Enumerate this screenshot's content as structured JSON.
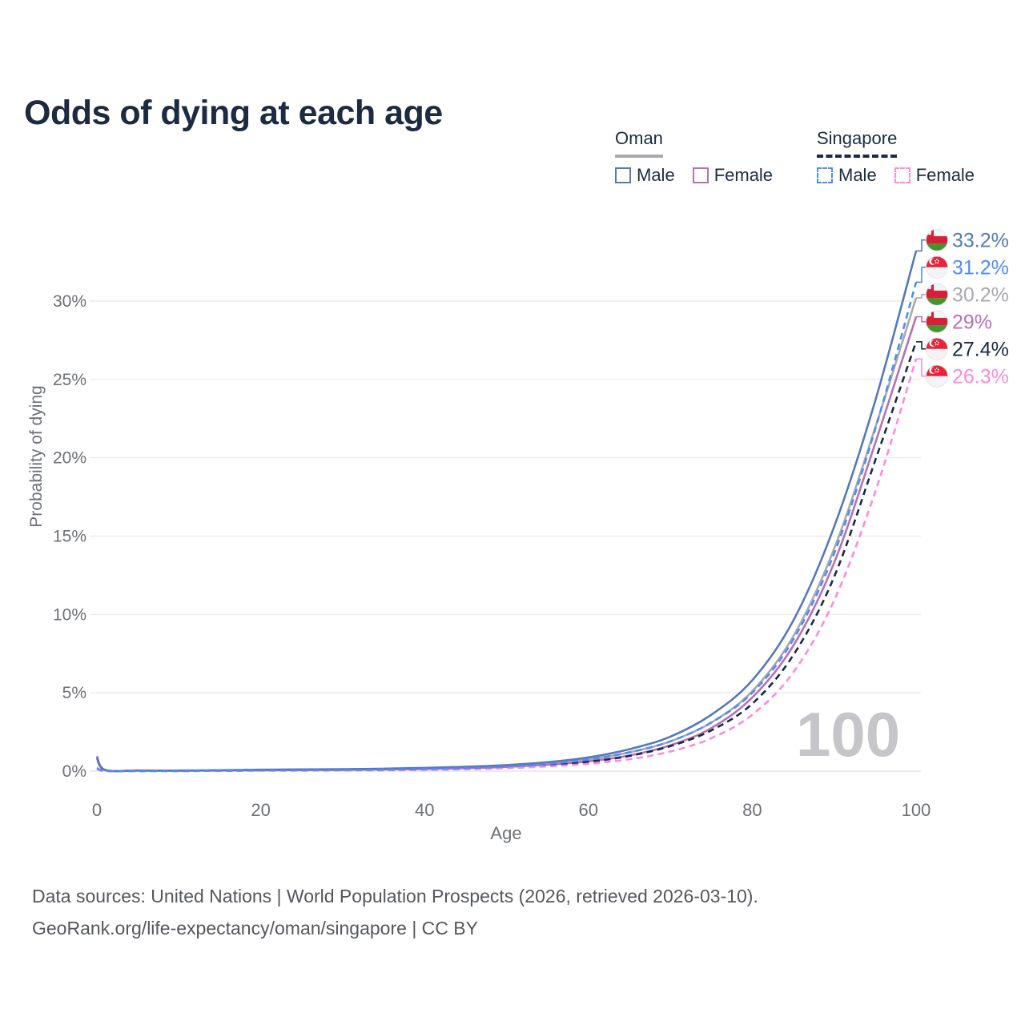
{
  "title": "Odds of dying at each age",
  "legend": {
    "oman": {
      "label": "Oman",
      "male": "Male",
      "female": "Female"
    },
    "singapore": {
      "label": "Singapore",
      "male": "Male",
      "female": "Female"
    }
  },
  "watermark_age": "100",
  "footer": {
    "line1": "Data sources: United Nations | World Population Prospects (2026, retrieved 2026-03-10).",
    "line2": "GeoRank.org/life-expectancy/oman/singapore | CC BY"
  },
  "colors": {
    "oman_male": "#5579bb",
    "oman_female": "#b671b6",
    "oman_country": "#a9a9ad",
    "singapore_male": "#4f8cf5",
    "singapore_female": "#fb8ae0",
    "singapore_country": "#1b2a42",
    "title_text": "#1c2b42",
    "axis_text": "#6d7076",
    "gridline": "#ebebeb",
    "zero_gridline": "#e3e3e5",
    "watermark": "#c6c6ca",
    "footer_text": "#54575c"
  },
  "flag_colors": {
    "oman_red": "#d62039",
    "oman_green": "#44952d",
    "singapore_red": "#e8243c",
    "flag_white": "#f4f4f6"
  },
  "chart_data": {
    "type": "line",
    "title": "Odds of dying at each age",
    "xlabel": "Age",
    "ylabel": "Probability of dying",
    "xlim": [
      0,
      100
    ],
    "ylim_percent": [
      0,
      34
    ],
    "x_ticks": [
      0,
      20,
      40,
      60,
      80,
      100
    ],
    "y_ticks_percent": [
      0,
      5,
      10,
      15,
      20,
      25,
      30
    ],
    "y_tick_labels": [
      "0%",
      "5%",
      "10%",
      "15%",
      "20%",
      "25%",
      "30%"
    ],
    "grid": "horizontal",
    "legend_position": "top-right",
    "ages": [
      0,
      1,
      5,
      10,
      15,
      20,
      25,
      30,
      35,
      40,
      45,
      50,
      55,
      60,
      65,
      70,
      75,
      80,
      85,
      90,
      95,
      100
    ],
    "series": [
      {
        "name": "Oman male",
        "country": "Oman",
        "sex": "Male",
        "flag": "oman",
        "line_style": "solid",
        "color_key": "oman_male",
        "end_label": "33.2%",
        "values_percent": [
          0.95,
          0.08,
          0.04,
          0.04,
          0.06,
          0.09,
          0.11,
          0.13,
          0.16,
          0.21,
          0.28,
          0.39,
          0.57,
          0.88,
          1.4,
          2.2,
          3.6,
          5.8,
          9.6,
          15.6,
          23.6,
          33.2
        ]
      },
      {
        "name": "Singapore male",
        "country": "Singapore",
        "sex": "Male",
        "flag": "singapore",
        "line_style": "dashed",
        "color_key": "singapore_male",
        "end_label": "31.2%",
        "values_percent": [
          0.2,
          0.02,
          0.01,
          0.01,
          0.03,
          0.05,
          0.06,
          0.07,
          0.09,
          0.13,
          0.19,
          0.29,
          0.46,
          0.74,
          1.2,
          1.9,
          3.1,
          5.0,
          8.4,
          13.9,
          21.8,
          31.2
        ]
      },
      {
        "name": "Oman",
        "country": "Oman",
        "sex": null,
        "flag": "oman",
        "line_style": "solid",
        "color_key": "oman_country",
        "end_label": "30.2%",
        "values_percent": [
          0.88,
          0.07,
          0.04,
          0.03,
          0.05,
          0.07,
          0.09,
          0.11,
          0.14,
          0.18,
          0.24,
          0.34,
          0.5,
          0.76,
          1.2,
          1.9,
          3.1,
          5.1,
          8.6,
          14.2,
          21.9,
          30.2
        ]
      },
      {
        "name": "Oman female",
        "country": "Oman",
        "sex": "Female",
        "flag": "oman",
        "line_style": "solid",
        "color_key": "oman_female",
        "end_label": "29%",
        "values_percent": [
          0.8,
          0.06,
          0.03,
          0.03,
          0.04,
          0.05,
          0.07,
          0.08,
          0.11,
          0.14,
          0.19,
          0.27,
          0.41,
          0.63,
          1.0,
          1.65,
          2.75,
          4.7,
          8.0,
          13.3,
          20.9,
          29.0
        ]
      },
      {
        "name": "Singapore",
        "country": "Singapore",
        "sex": null,
        "flag": "singapore",
        "line_style": "dashed",
        "color_key": "singapore_country",
        "end_label": "27.4%",
        "values_percent": [
          0.18,
          0.02,
          0.01,
          0.01,
          0.02,
          0.04,
          0.05,
          0.06,
          0.07,
          0.1,
          0.15,
          0.24,
          0.38,
          0.6,
          0.97,
          1.6,
          2.6,
          4.3,
          7.4,
          12.4,
          19.8,
          27.4
        ]
      },
      {
        "name": "Singapore female",
        "country": "Singapore",
        "sex": "Female",
        "flag": "singapore",
        "line_style": "dashed",
        "color_key": "singapore_female",
        "end_label": "26.3%",
        "values_percent": [
          0.16,
          0.01,
          0.01,
          0.01,
          0.02,
          0.03,
          0.03,
          0.04,
          0.05,
          0.08,
          0.12,
          0.19,
          0.3,
          0.47,
          0.76,
          1.25,
          2.1,
          3.6,
          6.3,
          10.9,
          17.8,
          26.3
        ]
      }
    ]
  }
}
